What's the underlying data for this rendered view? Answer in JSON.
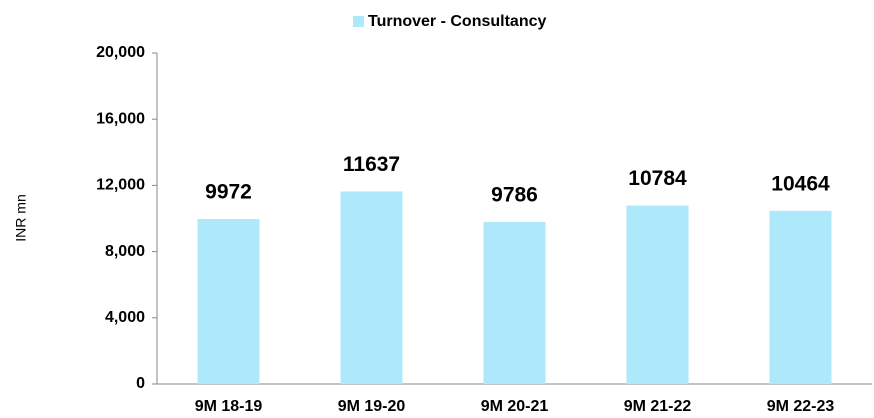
{
  "chart_data": {
    "type": "bar",
    "categories": [
      "9M 18-19",
      "9M 19-20",
      "9M 20-21",
      "9M 21-22",
      "9M 22-23"
    ],
    "series": [
      {
        "name": "Turnover - Consultancy",
        "color": "#aee9fb",
        "values": [
          9972,
          11637,
          9786,
          10784,
          10464
        ]
      }
    ],
    "y_label": "INR mn",
    "ylim": [
      0,
      20000
    ],
    "yticks": [
      0,
      {
        "value": 4000,
        "label": "4,000"
      },
      {
        "value": 8000,
        "label": "8,000"
      },
      {
        "value": 12000,
        "label": "12,000"
      },
      {
        "value": 16000,
        "label": "16,000"
      },
      {
        "value": 20000,
        "label": "20,000"
      }
    ],
    "grid": false,
    "legend": "top"
  }
}
